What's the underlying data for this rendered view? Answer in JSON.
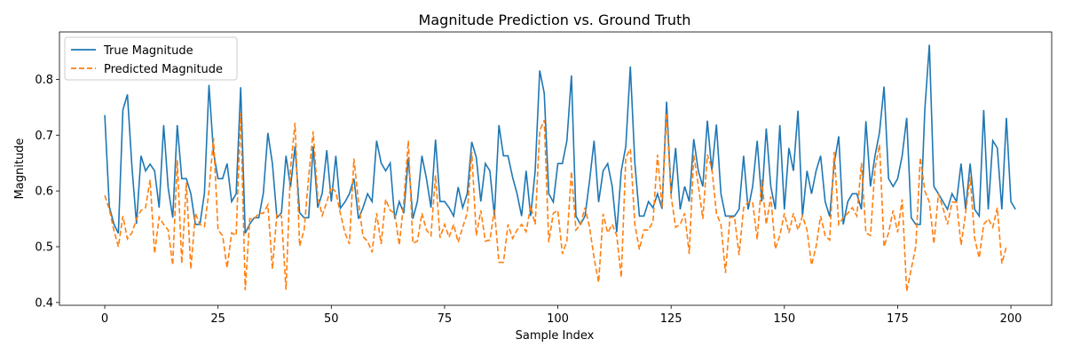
{
  "chart_data": {
    "type": "line",
    "title": "Magnitude Prediction vs. Ground Truth",
    "xlabel": "Sample Index",
    "ylabel": "Magnitude",
    "xlim": [
      -10,
      209
    ],
    "ylim": [
      0.395,
      0.885
    ],
    "xticks": [
      0,
      25,
      50,
      75,
      100,
      125,
      150,
      175,
      200
    ],
    "yticks": [
      0.4,
      0.5,
      0.6,
      0.7,
      0.8
    ],
    "ytick_labels": [
      "0.4",
      "0.5",
      "0.6",
      "0.7",
      "0.8"
    ],
    "grid": false,
    "legend_position": "top-left",
    "series": [
      {
        "name": "True Magnitude",
        "color": "#1f77b4",
        "style": "solid",
        "values": [
          0.736,
          0.572,
          0.541,
          0.524,
          0.745,
          0.773,
          0.643,
          0.541,
          0.663,
          0.636,
          0.648,
          0.636,
          0.57,
          0.718,
          0.605,
          0.552,
          0.718,
          0.622,
          0.622,
          0.595,
          0.54,
          0.54,
          0.596,
          0.79,
          0.669,
          0.622,
          0.622,
          0.649,
          0.581,
          0.595,
          0.786,
          0.524,
          0.541,
          0.552,
          0.552,
          0.596,
          0.704,
          0.649,
          0.552,
          0.561,
          0.663,
          0.607,
          0.68,
          0.561,
          0.552,
          0.552,
          0.68,
          0.57,
          0.596,
          0.673,
          0.581,
          0.663,
          0.569,
          0.58,
          0.595,
          0.622,
          0.55,
          0.57,
          0.595,
          0.581,
          0.69,
          0.65,
          0.636,
          0.65,
          0.55,
          0.581,
          0.56,
          0.66,
          0.55,
          0.581,
          0.663,
          0.622,
          0.57,
          0.692,
          0.581,
          0.581,
          0.57,
          0.555,
          0.607,
          0.57,
          0.595,
          0.688,
          0.66,
          0.581,
          0.649,
          0.636,
          0.555,
          0.718,
          0.663,
          0.663,
          0.625,
          0.595,
          0.555,
          0.636,
          0.555,
          0.636,
          0.816,
          0.775,
          0.595,
          0.58,
          0.649,
          0.649,
          0.69,
          0.807,
          0.555,
          0.54,
          0.555,
          0.618,
          0.69,
          0.58,
          0.636,
          0.649,
          0.608,
          0.526,
          0.636,
          0.68,
          0.823,
          0.65,
          0.555,
          0.555,
          0.581,
          0.57,
          0.595,
          0.568,
          0.76,
          0.595,
          0.677,
          0.567,
          0.608,
          0.581,
          0.693,
          0.636,
          0.608,
          0.726,
          0.636,
          0.719,
          0.595,
          0.555,
          0.555,
          0.555,
          0.567,
          0.663,
          0.567,
          0.608,
          0.69,
          0.581,
          0.712,
          0.608,
          0.567,
          0.718,
          0.567,
          0.677,
          0.636,
          0.744,
          0.555,
          0.636,
          0.595,
          0.636,
          0.663,
          0.581,
          0.554,
          0.649,
          0.698,
          0.54,
          0.581,
          0.595,
          0.595,
          0.567,
          0.725,
          0.608,
          0.663,
          0.705,
          0.787,
          0.622,
          0.608,
          0.622,
          0.663,
          0.731,
          0.552,
          0.54,
          0.54,
          0.746,
          0.862,
          0.608,
          0.595,
          0.581,
          0.567,
          0.595,
          0.581,
          0.649,
          0.567,
          0.649,
          0.567,
          0.555,
          0.745,
          0.567,
          0.69,
          0.677,
          0.567,
          0.731,
          0.581,
          0.567
        ]
      },
      {
        "name": "Predicted Magnitude",
        "color": "#ff7f0e",
        "style": "dashed",
        "values": [
          0.592,
          0.567,
          0.53,
          0.5,
          0.555,
          0.514,
          0.525,
          0.55,
          0.565,
          0.57,
          0.62,
          0.488,
          0.553,
          0.54,
          0.53,
          0.467,
          0.655,
          0.47,
          0.615,
          0.46,
          0.56,
          0.54,
          0.536,
          0.6,
          0.695,
          0.53,
          0.52,
          0.462,
          0.525,
          0.52,
          0.74,
          0.422,
          0.55,
          0.55,
          0.56,
          0.56,
          0.575,
          0.46,
          0.56,
          0.555,
          0.423,
          0.64,
          0.722,
          0.501,
          0.53,
          0.625,
          0.707,
          0.59,
          0.556,
          0.58,
          0.607,
          0.598,
          0.56,
          0.525,
          0.505,
          0.658,
          0.58,
          0.518,
          0.51,
          0.49,
          0.56,
          0.505,
          0.585,
          0.565,
          0.56,
          0.503,
          0.58,
          0.69,
          0.506,
          0.51,
          0.56,
          0.53,
          0.52,
          0.628,
          0.516,
          0.54,
          0.517,
          0.54,
          0.508,
          0.535,
          0.56,
          0.67,
          0.52,
          0.565,
          0.51,
          0.512,
          0.566,
          0.472,
          0.472,
          0.54,
          0.515,
          0.53,
          0.54,
          0.527,
          0.573,
          0.54,
          0.708,
          0.727,
          0.508,
          0.56,
          0.565,
          0.487,
          0.51,
          0.635,
          0.53,
          0.54,
          0.57,
          0.535,
          0.48,
          0.436,
          0.559,
          0.525,
          0.54,
          0.52,
          0.445,
          0.66,
          0.675,
          0.54,
          0.495,
          0.53,
          0.53,
          0.545,
          0.665,
          0.57,
          0.74,
          0.59,
          0.535,
          0.54,
          0.56,
          0.487,
          0.665,
          0.61,
          0.55,
          0.665,
          0.64,
          0.56,
          0.54,
          0.453,
          0.553,
          0.553,
          0.485,
          0.57,
          0.58,
          0.58,
          0.513,
          0.62,
          0.54,
          0.59,
          0.496,
          0.52,
          0.56,
          0.525,
          0.56,
          0.53,
          0.555,
          0.53,
          0.467,
          0.5,
          0.555,
          0.52,
          0.512,
          0.67,
          0.54,
          0.552,
          0.56,
          0.57,
          0.555,
          0.65,
          0.525,
          0.52,
          0.64,
          0.683,
          0.5,
          0.525,
          0.565,
          0.526,
          0.585,
          0.42,
          0.46,
          0.5,
          0.66,
          0.6,
          0.58,
          0.505,
          0.595,
          0.57,
          0.54,
          0.58,
          0.58,
          0.503,
          0.56,
          0.625,
          0.515,
          0.48,
          0.54,
          0.55,
          0.535,
          0.57,
          0.47,
          0.5
        ]
      }
    ]
  }
}
